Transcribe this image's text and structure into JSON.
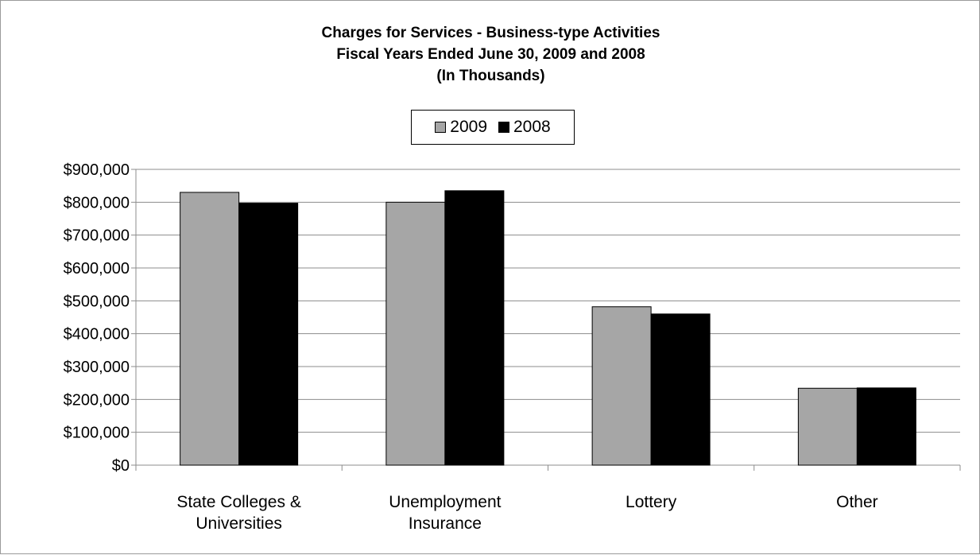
{
  "chart_data": {
    "type": "bar",
    "title_lines": [
      "Charges for Services - Business-type  Activities",
      "Fiscal Years Ended June 30, 2009 and 2008",
      "(In Thousands)"
    ],
    "categories": [
      [
        "State Colleges &",
        "Universities"
      ],
      [
        "Unemployment",
        "Insurance"
      ],
      [
        "Lottery"
      ],
      [
        "Other"
      ]
    ],
    "series": [
      {
        "name": "2009",
        "values": [
          830000,
          800000,
          482000,
          234000
        ],
        "color": "#a6a6a6"
      },
      {
        "name": "2008",
        "values": [
          797000,
          835000,
          460000,
          235000
        ],
        "color": "#000000"
      }
    ],
    "y_ticks": [
      "$0",
      "$100,000",
      "$200,000",
      "$300,000",
      "$400,000",
      "$500,000",
      "$600,000",
      "$700,000",
      "$800,000",
      "$900,000"
    ],
    "ylim": [
      0,
      900000
    ],
    "grid": true,
    "legend_position": "top"
  }
}
